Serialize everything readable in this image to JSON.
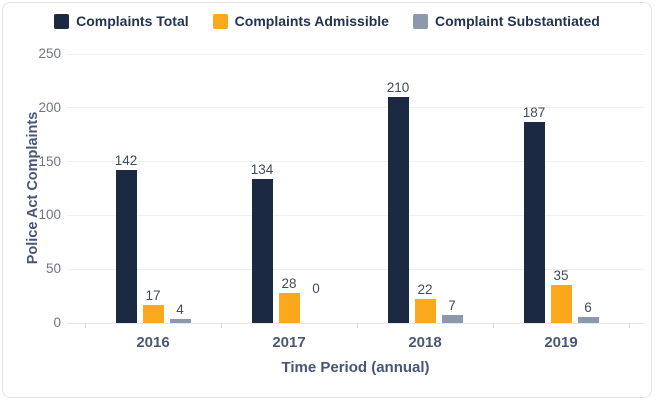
{
  "chart_data": {
    "type": "bar",
    "title": "",
    "categories": [
      "2016",
      "2017",
      "2018",
      "2019"
    ],
    "series": [
      {
        "name": "Complaints Total",
        "color": "#1b2943",
        "values": [
          142,
          134,
          210,
          187
        ]
      },
      {
        "name": "Complaints Admissible",
        "color": "#fba81d",
        "values": [
          17,
          28,
          22,
          35
        ]
      },
      {
        "name": "Complaint Substantiated",
        "color": "#8c98ab",
        "values": [
          4,
          0,
          7,
          6
        ]
      }
    ],
    "xlabel": "Time Period (annual)",
    "ylabel": "Police Act Complaints",
    "ylim": [
      0,
      250
    ],
    "yticks": [
      0,
      50,
      100,
      150,
      200,
      250
    ],
    "grid": true,
    "legend_position": "top",
    "data_labels": true
  }
}
